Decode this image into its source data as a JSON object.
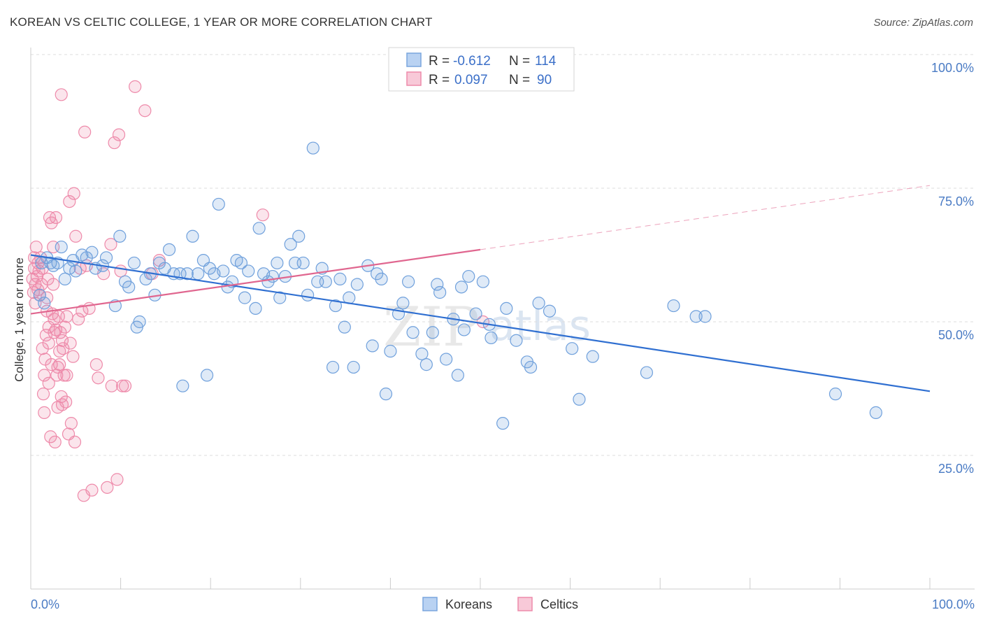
{
  "title": "KOREAN VS CELTIC COLLEGE, 1 YEAR OR MORE CORRELATION CHART",
  "source": "Source: ZipAtlas.com",
  "colors": {
    "blue": "#6fa0dc",
    "blue_line": "#2f6fd1",
    "pink": "#ee8aaa",
    "pink_line": "#e0668f"
  },
  "legend": {
    "rows": [
      {
        "r_label": "R =",
        "r_value": "-0.612",
        "n_label": "N =",
        "n_value": "114"
      },
      {
        "r_label": "R =",
        "r_value": "0.097",
        "n_label": "N =",
        "n_value": "90"
      }
    ]
  },
  "watermark": {
    "zip": "ZIP",
    "atlas": "atlas"
  },
  "chart_data": {
    "type": "scatter",
    "title": "KOREAN VS CELTIC COLLEGE, 1 YEAR OR MORE CORRELATION CHART",
    "xlabel": "",
    "ylabel": "College, 1 year or more",
    "xlim": [
      0,
      100
    ],
    "ylim": [
      0,
      100
    ],
    "x_tick_labels": [
      "0.0%",
      "100.0%"
    ],
    "y_ticks": [
      25,
      50,
      75,
      100
    ],
    "y_tick_labels": [
      "25.0%",
      "50.0%",
      "75.0%",
      "100.0%"
    ],
    "grid": true,
    "legend_position": "top-center",
    "series": [
      {
        "name": "Koreans",
        "r": -0.612,
        "n": 114,
        "trend": {
          "x0": 0,
          "y0": 62.5,
          "x1": 100,
          "y1": 37.0
        },
        "points": [
          [
            1.0,
            55.0
          ],
          [
            1.2,
            61.0
          ],
          [
            1.5,
            53.5
          ],
          [
            1.8,
            62.0
          ],
          [
            2.2,
            61.0
          ],
          [
            2.5,
            60.5
          ],
          [
            3.0,
            61.0
          ],
          [
            3.4,
            64.0
          ],
          [
            3.8,
            58.0
          ],
          [
            4.3,
            60.0
          ],
          [
            4.7,
            61.5
          ],
          [
            5.0,
            59.5
          ],
          [
            5.7,
            62.5
          ],
          [
            6.2,
            62.0
          ],
          [
            6.8,
            63.0
          ],
          [
            7.2,
            60.0
          ],
          [
            8.0,
            60.5
          ],
          [
            8.4,
            62.0
          ],
          [
            9.4,
            53.0
          ],
          [
            9.9,
            66.0
          ],
          [
            10.5,
            57.5
          ],
          [
            10.9,
            56.5
          ],
          [
            11.5,
            61.0
          ],
          [
            11.8,
            49.0
          ],
          [
            12.1,
            50.0
          ],
          [
            12.8,
            58.0
          ],
          [
            13.3,
            59.0
          ],
          [
            13.8,
            55.0
          ],
          [
            14.3,
            61.0
          ],
          [
            14.9,
            60.0
          ],
          [
            15.4,
            63.5
          ],
          [
            15.9,
            59.0
          ],
          [
            16.6,
            59.0
          ],
          [
            16.9,
            38.0
          ],
          [
            17.4,
            59.0
          ],
          [
            18.0,
            66.0
          ],
          [
            18.6,
            59.0
          ],
          [
            19.2,
            61.5
          ],
          [
            19.6,
            40.0
          ],
          [
            19.9,
            60.0
          ],
          [
            20.4,
            59.0
          ],
          [
            20.9,
            72.0
          ],
          [
            21.4,
            59.5
          ],
          [
            21.9,
            56.5
          ],
          [
            22.4,
            57.5
          ],
          [
            22.9,
            61.5
          ],
          [
            23.4,
            61.0
          ],
          [
            23.8,
            54.5
          ],
          [
            24.2,
            59.5
          ],
          [
            25.0,
            52.5
          ],
          [
            25.4,
            67.5
          ],
          [
            25.9,
            59.0
          ],
          [
            26.4,
            57.5
          ],
          [
            26.9,
            58.5
          ],
          [
            27.4,
            61.0
          ],
          [
            27.7,
            54.5
          ],
          [
            28.3,
            58.5
          ],
          [
            28.9,
            64.5
          ],
          [
            29.4,
            61.0
          ],
          [
            29.8,
            66.0
          ],
          [
            30.3,
            61.0
          ],
          [
            30.8,
            55.0
          ],
          [
            31.4,
            82.5
          ],
          [
            31.9,
            57.5
          ],
          [
            32.4,
            60.0
          ],
          [
            32.8,
            57.5
          ],
          [
            33.6,
            41.5
          ],
          [
            33.9,
            53.0
          ],
          [
            34.4,
            58.0
          ],
          [
            34.9,
            49.0
          ],
          [
            35.4,
            54.5
          ],
          [
            35.9,
            41.5
          ],
          [
            36.3,
            57.0
          ],
          [
            37.5,
            60.5
          ],
          [
            38.0,
            45.5
          ],
          [
            38.5,
            59.0
          ],
          [
            39.0,
            58.0
          ],
          [
            39.5,
            36.5
          ],
          [
            40.0,
            44.5
          ],
          [
            40.9,
            51.5
          ],
          [
            41.4,
            53.5
          ],
          [
            42.0,
            57.5
          ],
          [
            42.5,
            48.0
          ],
          [
            43.5,
            44.0
          ],
          [
            44.0,
            42.0
          ],
          [
            44.7,
            48.0
          ],
          [
            45.2,
            57.0
          ],
          [
            45.5,
            55.5
          ],
          [
            46.2,
            43.0
          ],
          [
            47.0,
            50.5
          ],
          [
            47.5,
            40.0
          ],
          [
            47.9,
            56.5
          ],
          [
            48.2,
            48.5
          ],
          [
            48.7,
            58.5
          ],
          [
            49.5,
            51.5
          ],
          [
            50.3,
            57.5
          ],
          [
            51.0,
            49.5
          ],
          [
            51.2,
            47.0
          ],
          [
            52.5,
            31.0
          ],
          [
            52.9,
            52.5
          ],
          [
            54.0,
            46.5
          ],
          [
            55.2,
            42.5
          ],
          [
            55.6,
            41.5
          ],
          [
            56.5,
            53.5
          ],
          [
            57.7,
            52.0
          ],
          [
            62.5,
            43.5
          ],
          [
            61.0,
            35.5
          ],
          [
            60.2,
            45.0
          ],
          [
            71.5,
            53.0
          ],
          [
            75.0,
            51.0
          ],
          [
            68.5,
            40.5
          ],
          [
            89.5,
            36.5
          ],
          [
            94.0,
            33.0
          ],
          [
            74.0,
            51.0
          ]
        ]
      },
      {
        "name": "Celtics",
        "r": 0.097,
        "n": 90,
        "trend": {
          "x0": 0,
          "y0": 51.5,
          "x1": 50,
          "y1": 63.5,
          "dashed_to_x": 100,
          "dashed_to_y": 75.5
        },
        "points": [
          [
            0.2,
            58.0
          ],
          [
            0.3,
            55.5
          ],
          [
            0.4,
            60.0
          ],
          [
            0.4,
            62.0
          ],
          [
            0.5,
            53.5
          ],
          [
            0.5,
            57.0
          ],
          [
            0.6,
            64.0
          ],
          [
            0.7,
            58.5
          ],
          [
            0.8,
            61.0
          ],
          [
            0.8,
            56.0
          ],
          [
            0.9,
            59.5
          ],
          [
            1.0,
            55.0
          ],
          [
            1.1,
            62.0
          ],
          [
            1.2,
            57.0
          ],
          [
            1.3,
            60.0
          ],
          [
            1.3,
            45.0
          ],
          [
            1.4,
            36.5
          ],
          [
            1.5,
            40.0
          ],
          [
            1.5,
            33.0
          ],
          [
            1.6,
            43.0
          ],
          [
            1.7,
            47.5
          ],
          [
            1.8,
            52.0
          ],
          [
            1.8,
            54.5
          ],
          [
            1.9,
            58.0
          ],
          [
            2.0,
            49.0
          ],
          [
            2.0,
            46.0
          ],
          [
            2.1,
            69.5
          ],
          [
            2.2,
            28.5
          ],
          [
            2.3,
            68.5
          ],
          [
            2.3,
            42.0
          ],
          [
            2.4,
            51.5
          ],
          [
            2.5,
            57.0
          ],
          [
            2.5,
            64.0
          ],
          [
            2.6,
            50.5
          ],
          [
            2.6,
            48.0
          ],
          [
            2.7,
            27.5
          ],
          [
            2.8,
            48.5
          ],
          [
            2.8,
            69.5
          ],
          [
            2.9,
            40.0
          ],
          [
            3.0,
            34.0
          ],
          [
            3.0,
            41.5
          ],
          [
            3.1,
            51.0
          ],
          [
            3.2,
            44.5
          ],
          [
            3.2,
            42.0
          ],
          [
            3.3,
            48.0
          ],
          [
            3.4,
            92.5
          ],
          [
            3.4,
            36.0
          ],
          [
            3.5,
            46.5
          ],
          [
            3.5,
            34.5
          ],
          [
            3.6,
            45.0
          ],
          [
            3.7,
            40.0
          ],
          [
            3.8,
            49.0
          ],
          [
            3.9,
            35.0
          ],
          [
            4.0,
            51.0
          ],
          [
            4.0,
            40.0
          ],
          [
            4.2,
            29.0
          ],
          [
            4.3,
            72.5
          ],
          [
            4.4,
            46.0
          ],
          [
            4.5,
            31.0
          ],
          [
            4.7,
            43.5
          ],
          [
            4.8,
            74.0
          ],
          [
            4.9,
            27.5
          ],
          [
            5.0,
            66.0
          ],
          [
            5.3,
            50.5
          ],
          [
            5.5,
            60.0
          ],
          [
            5.7,
            52.0
          ],
          [
            5.9,
            17.5
          ],
          [
            6.0,
            85.5
          ],
          [
            6.2,
            60.5
          ],
          [
            6.5,
            52.5
          ],
          [
            6.8,
            18.5
          ],
          [
            7.3,
            42.0
          ],
          [
            7.5,
            39.5
          ],
          [
            8.1,
            59.0
          ],
          [
            8.5,
            19.0
          ],
          [
            8.9,
            64.5
          ],
          [
            9.0,
            38.0
          ],
          [
            9.3,
            83.5
          ],
          [
            9.6,
            20.5
          ],
          [
            9.8,
            85.0
          ],
          [
            10.0,
            59.5
          ],
          [
            10.2,
            38.0
          ],
          [
            10.5,
            38.0
          ],
          [
            11.6,
            94.0
          ],
          [
            12.7,
            89.5
          ],
          [
            13.5,
            59.0
          ],
          [
            14.3,
            61.5
          ],
          [
            25.8,
            70.0
          ],
          [
            50.3,
            50.0
          ],
          [
            2.0,
            38.5
          ]
        ]
      }
    ]
  },
  "bottom_legend": [
    {
      "label": "Koreans"
    },
    {
      "label": "Celtics"
    }
  ]
}
